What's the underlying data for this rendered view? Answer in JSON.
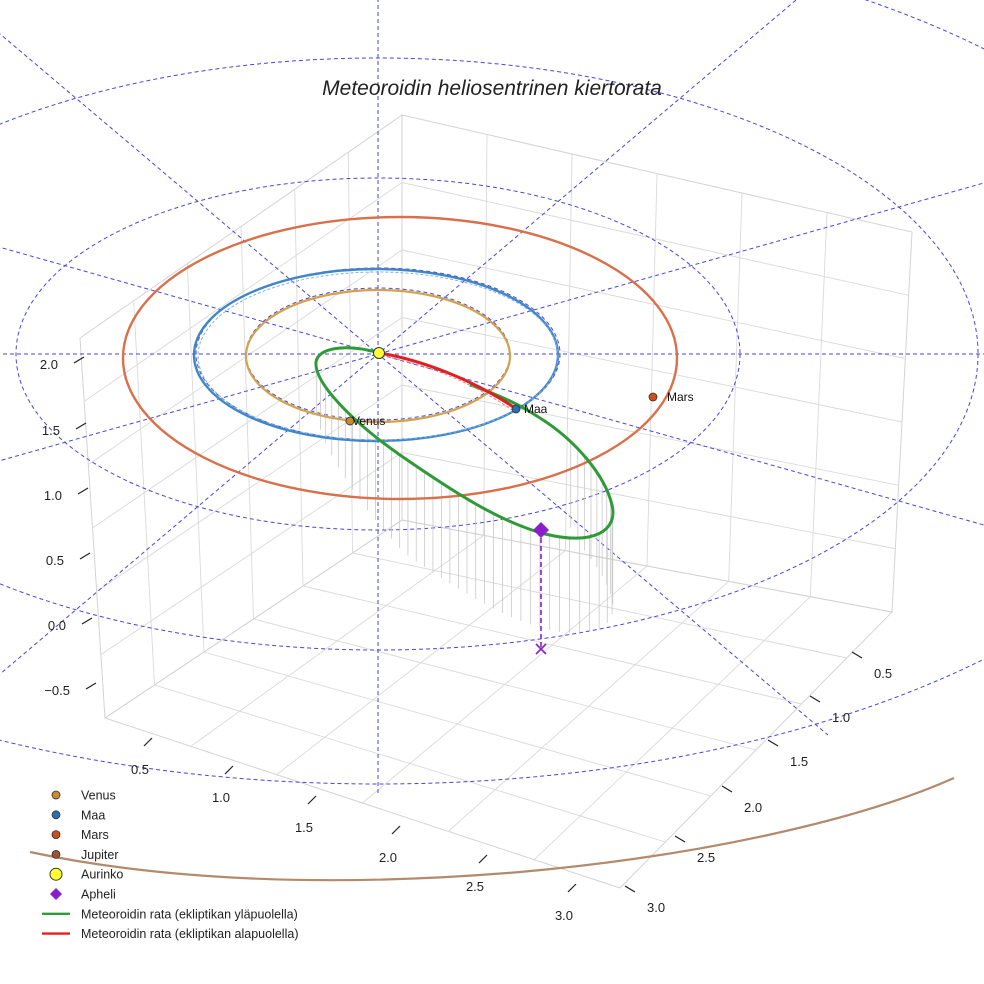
{
  "chart_data": {
    "type": "3d-orbit",
    "title": "Meteoroidin heliosentrinen kiertorata",
    "axes": {
      "z_ticks": [
        "−0.5",
        "0.0",
        "0.5",
        "1.0",
        "1.5",
        "2.0"
      ],
      "x_ticks": [
        "0.5",
        "1.0",
        "1.5",
        "2.0",
        "2.5",
        "3.0"
      ],
      "y_ticks": [
        "0.5",
        "1.0",
        "1.5",
        "2.0",
        "2.5",
        "3.0"
      ]
    },
    "planets": [
      {
        "name": "Venus",
        "orbit_radius_au": 0.72,
        "color": "#d4a24c",
        "marker_color": "#c98a2c",
        "label": "Venus"
      },
      {
        "name": "Maa",
        "orbit_radius_au": 1.0,
        "color": "#3f86c8",
        "marker_color": "#2a6fb0",
        "label": "Maa"
      },
      {
        "name": "Mars",
        "orbit_radius_au": 1.52,
        "color": "#d9704a",
        "marker_color": "#c9501e",
        "label": "Mars"
      },
      {
        "name": "Jupiter",
        "orbit_radius_au": 5.2,
        "color": "#b38a6c",
        "marker_color": "#a0522d",
        "label": ""
      }
    ],
    "sun": {
      "name": "Aurinko",
      "color": "#ffff33"
    },
    "aphelion": {
      "name": "Apheli",
      "color": "#8a1ec8"
    },
    "meteoroid_orbit": [
      {
        "name": "Meteoroidin rata (ekliptikan yläpuolella)",
        "color": "#2e9a38"
      },
      {
        "name": "Meteoroidin rata (ekliptikan alapuolella)",
        "color": "#e02020"
      }
    ],
    "grid": true
  },
  "legend": {
    "items": [
      {
        "label": "Venus",
        "kind": "dot",
        "color": "#c98a2c"
      },
      {
        "label": "Maa",
        "kind": "dot",
        "color": "#2a6fb0"
      },
      {
        "label": "Mars",
        "kind": "dot",
        "color": "#c9501e"
      },
      {
        "label": "Jupiter",
        "kind": "dot",
        "color": "#a0522d"
      },
      {
        "label": "Aurinko",
        "kind": "sun",
        "color": "#ffff33"
      },
      {
        "label": "Apheli",
        "kind": "diamond",
        "color": "#8a1ec8"
      },
      {
        "label": "Meteoroidin rata (ekliptikan yläpuolella)",
        "kind": "line",
        "color": "#2e9a38"
      },
      {
        "label": "Meteoroidin rata (ekliptikan alapuolella)",
        "kind": "line",
        "color": "#e02020"
      }
    ]
  }
}
